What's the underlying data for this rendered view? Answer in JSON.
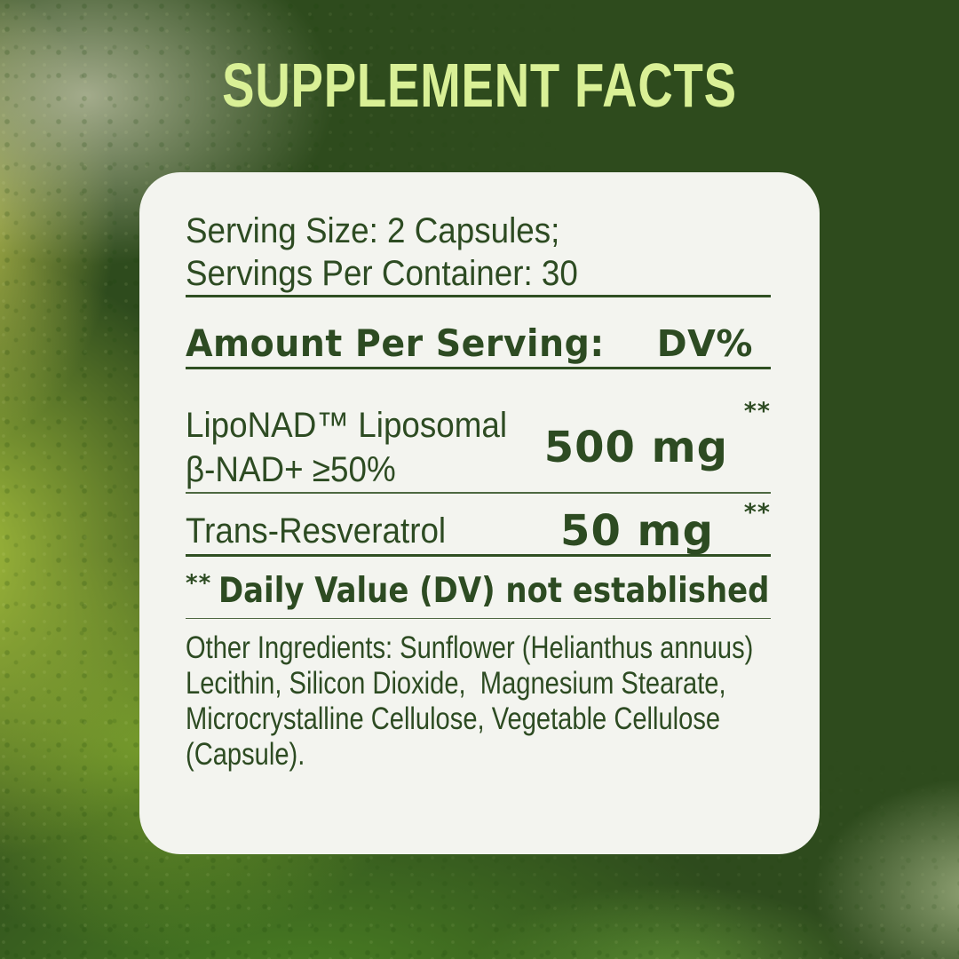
{
  "page": {
    "title": "SUPPLEMENT FACTS"
  },
  "panel": {
    "serving_size": "Serving Size: 2 Capsules;",
    "servings_per_container": "Servings Per Container: 30",
    "header": {
      "amount_label": "Amount Per Serving:",
      "dv_label": "DV%"
    },
    "nutrients": [
      {
        "name_line1": "LipoNAD™ Liposomal",
        "name_line2": "β-NAD+ ≥50%",
        "amount": "500 mg",
        "dv": "**"
      },
      {
        "name_line1": "Trans-Resveratrol",
        "amount": "50 mg",
        "dv": "**"
      }
    ],
    "footnote": {
      "marker": "**",
      "text": "Daily Value (DV) not established"
    },
    "other_ingredients": "Other Ingredients: Sunflower (Helianthus annuus) Lecithin, Silicon Dioxide,  Magnesium Stearate, Microcrystalline Cellulose, Vegetable Cellulose (Capsule)."
  },
  "colors": {
    "background_dark_green": "#2e4b1d",
    "leaf_bright_green": "#a9c23d",
    "bottom_green": "#4d8523",
    "title_text": "#d9f096",
    "card_background": "#f3f4ef",
    "panel_text_green": "#2d4b22"
  }
}
